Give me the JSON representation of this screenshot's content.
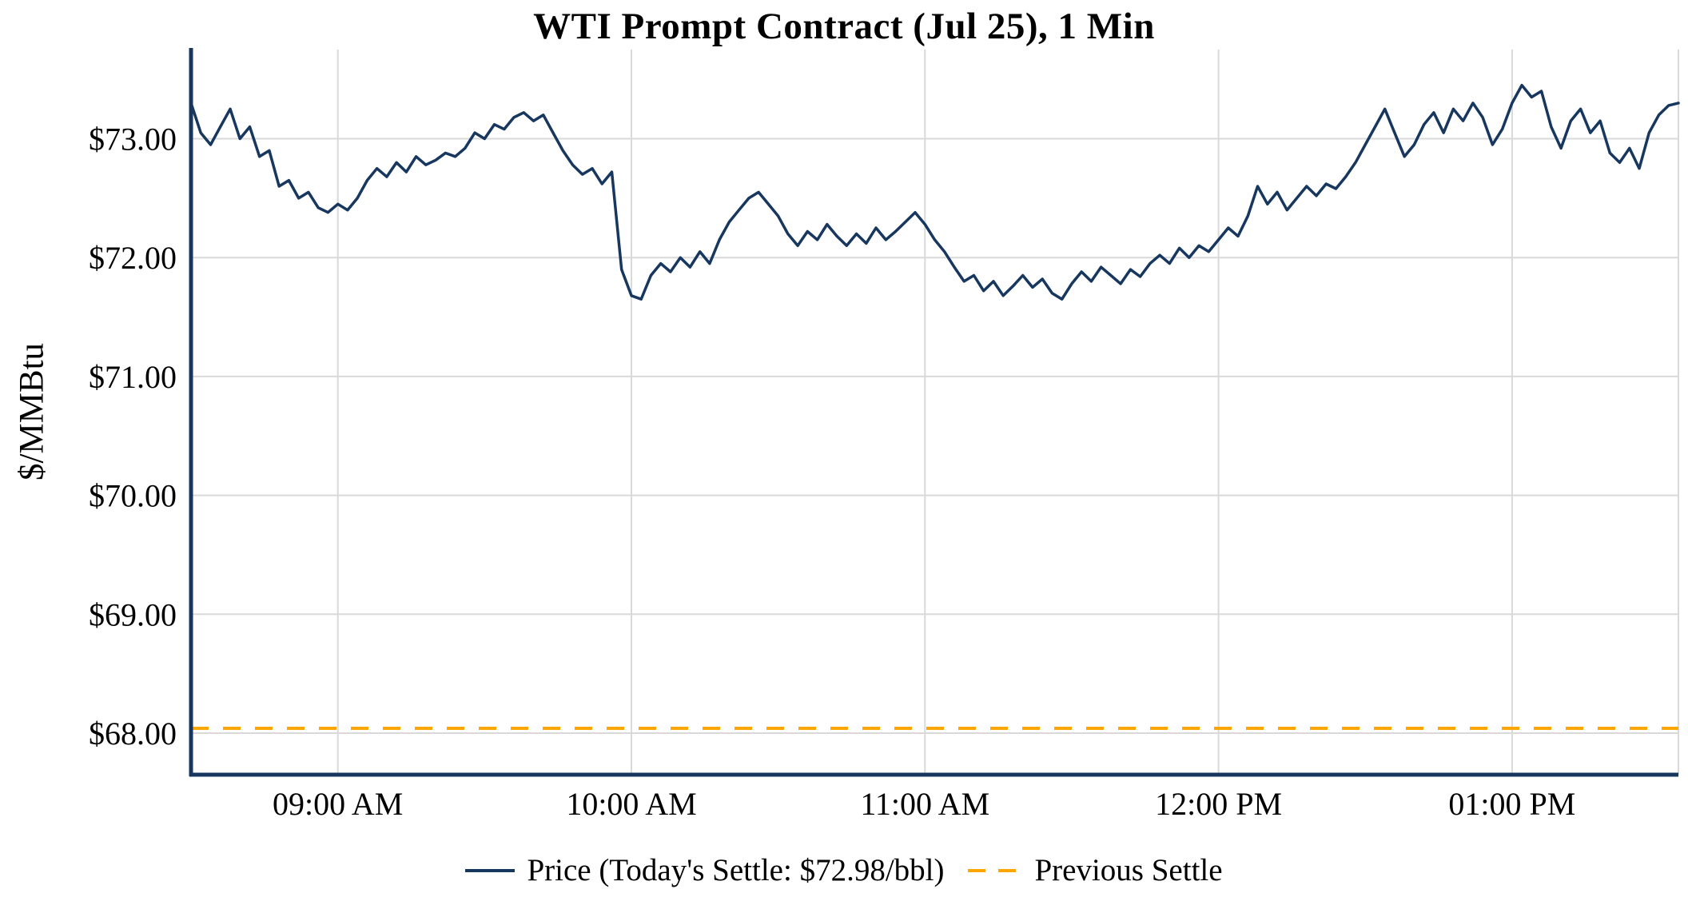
{
  "colors": {
    "line": "#17375E",
    "settle": "#FFA500",
    "grid": "#D9D9D9",
    "axis": "#17375E",
    "text": "#000000",
    "background": "#FFFFFF"
  },
  "chart_data": {
    "type": "line",
    "title": "WTI Prompt Contract (Jul 25), 1 Min",
    "ylabel": "$/MMBtu",
    "xlabel": "",
    "grid": true,
    "legend_position": "bottom",
    "x_axis": {
      "tick_labels": [
        "09:00 AM",
        "10:00 AM",
        "11:00 AM",
        "12:00 PM",
        "01:00 PM"
      ],
      "tick_minutes": [
        30,
        90,
        150,
        210,
        270
      ],
      "range_minutes": [
        0,
        304
      ]
    },
    "y_axis": {
      "tick_values": [
        68,
        69,
        70,
        71,
        72,
        73
      ],
      "tick_labels": [
        "$68.00",
        "$69.00",
        "$70.00",
        "$71.00",
        "$72.00",
        "$73.00"
      ],
      "ylim": [
        67.65,
        73.75
      ]
    },
    "series": [
      {
        "name": "Price (Today's Settle: $72.98/bbl)",
        "type": "line",
        "style": "solid",
        "color": "#17375E",
        "start_minute": 0,
        "interval_minutes": 2,
        "values": [
          73.3,
          73.05,
          72.95,
          73.1,
          73.25,
          73.0,
          73.1,
          72.85,
          72.9,
          72.6,
          72.65,
          72.5,
          72.55,
          72.42,
          72.38,
          72.45,
          72.4,
          72.5,
          72.65,
          72.75,
          72.68,
          72.8,
          72.72,
          72.85,
          72.78,
          72.82,
          72.88,
          72.85,
          72.92,
          73.05,
          73.0,
          73.12,
          73.08,
          73.18,
          73.22,
          73.15,
          73.2,
          73.05,
          72.9,
          72.78,
          72.7,
          72.75,
          72.62,
          72.72,
          71.9,
          71.68,
          71.65,
          71.85,
          71.95,
          71.88,
          72.0,
          71.92,
          72.05,
          71.95,
          72.15,
          72.3,
          72.4,
          72.5,
          72.55,
          72.45,
          72.35,
          72.2,
          72.1,
          72.22,
          72.15,
          72.28,
          72.18,
          72.1,
          72.2,
          72.12,
          72.25,
          72.15,
          72.22,
          72.3,
          72.38,
          72.28,
          72.15,
          72.05,
          71.92,
          71.8,
          71.85,
          71.72,
          71.8,
          71.68,
          71.76,
          71.85,
          71.75,
          71.82,
          71.7,
          71.65,
          71.78,
          71.88,
          71.8,
          71.92,
          71.85,
          71.78,
          71.9,
          71.84,
          71.95,
          72.02,
          71.95,
          72.08,
          72.0,
          72.1,
          72.05,
          72.15,
          72.25,
          72.18,
          72.35,
          72.6,
          72.45,
          72.55,
          72.4,
          72.5,
          72.6,
          72.52,
          72.62,
          72.58,
          72.68,
          72.8,
          72.95,
          73.1,
          73.25,
          73.05,
          72.85,
          72.95,
          73.12,
          73.22,
          73.05,
          73.25,
          73.15,
          73.3,
          73.18,
          72.95,
          73.08,
          73.3,
          73.45,
          73.35,
          73.4,
          73.1,
          72.92,
          73.15,
          73.25,
          73.05,
          73.15,
          72.88,
          72.8,
          72.92,
          72.75,
          73.05,
          73.2,
          73.28,
          73.3
        ]
      },
      {
        "name": "Previous Settle",
        "type": "hline",
        "style": "dashed",
        "color": "#FFA500",
        "value": 68.04
      }
    ]
  }
}
